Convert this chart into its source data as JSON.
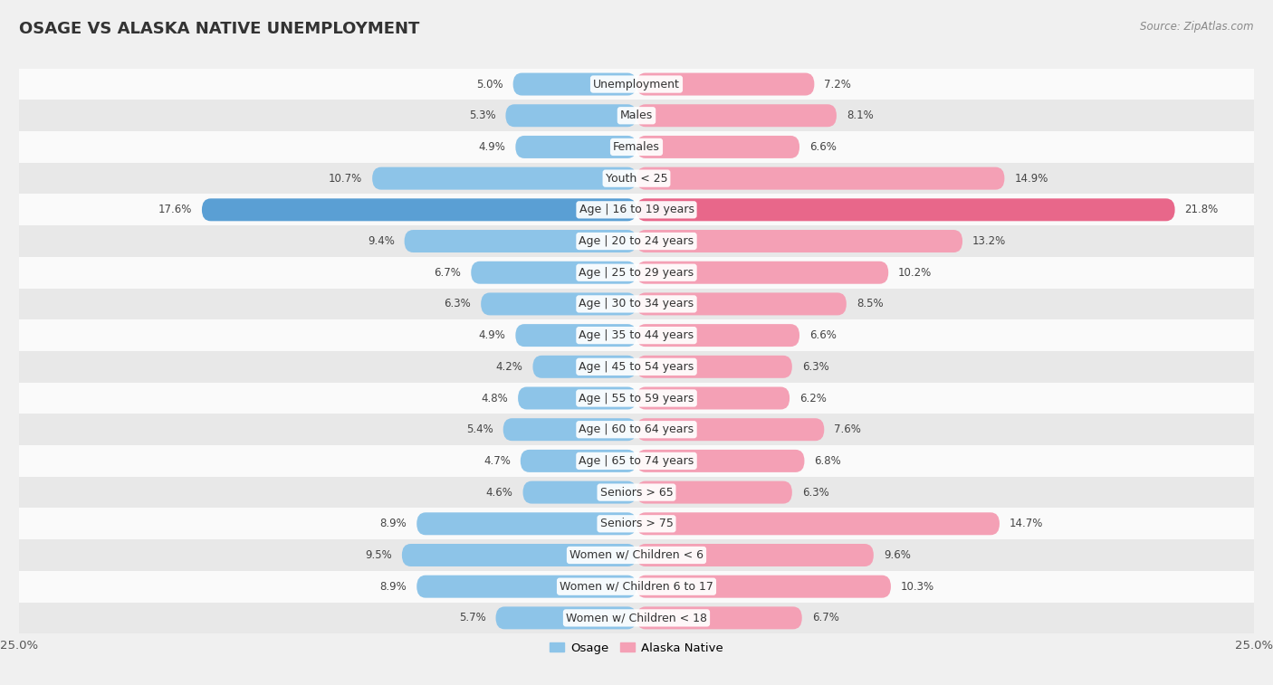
{
  "title": "OSAGE VS ALASKA NATIVE UNEMPLOYMENT",
  "source": "Source: ZipAtlas.com",
  "categories": [
    "Unemployment",
    "Males",
    "Females",
    "Youth < 25",
    "Age | 16 to 19 years",
    "Age | 20 to 24 years",
    "Age | 25 to 29 years",
    "Age | 30 to 34 years",
    "Age | 35 to 44 years",
    "Age | 45 to 54 years",
    "Age | 55 to 59 years",
    "Age | 60 to 64 years",
    "Age | 65 to 74 years",
    "Seniors > 65",
    "Seniors > 75",
    "Women w/ Children < 6",
    "Women w/ Children 6 to 17",
    "Women w/ Children < 18"
  ],
  "osage_values": [
    5.0,
    5.3,
    4.9,
    10.7,
    17.6,
    9.4,
    6.7,
    6.3,
    4.9,
    4.2,
    4.8,
    5.4,
    4.7,
    4.6,
    8.9,
    9.5,
    8.9,
    5.7
  ],
  "alaska_values": [
    7.2,
    8.1,
    6.6,
    14.9,
    21.8,
    13.2,
    10.2,
    8.5,
    6.6,
    6.3,
    6.2,
    7.6,
    6.8,
    6.3,
    14.7,
    9.6,
    10.3,
    6.7
  ],
  "osage_color": "#8dc4e8",
  "alaska_color": "#f4a0b5",
  "highlight_osage_color": "#5a9fd4",
  "highlight_alaska_color": "#e8678a",
  "highlight_rows": [
    4
  ],
  "background_color": "#f0f0f0",
  "row_bg_even": "#fafafa",
  "row_bg_odd": "#e8e8e8",
  "xlim": 25.0,
  "bar_height": 0.72,
  "label_fontsize": 9.0,
  "value_fontsize": 8.5,
  "legend_osage": "Osage",
  "legend_alaska": "Alaska Native"
}
